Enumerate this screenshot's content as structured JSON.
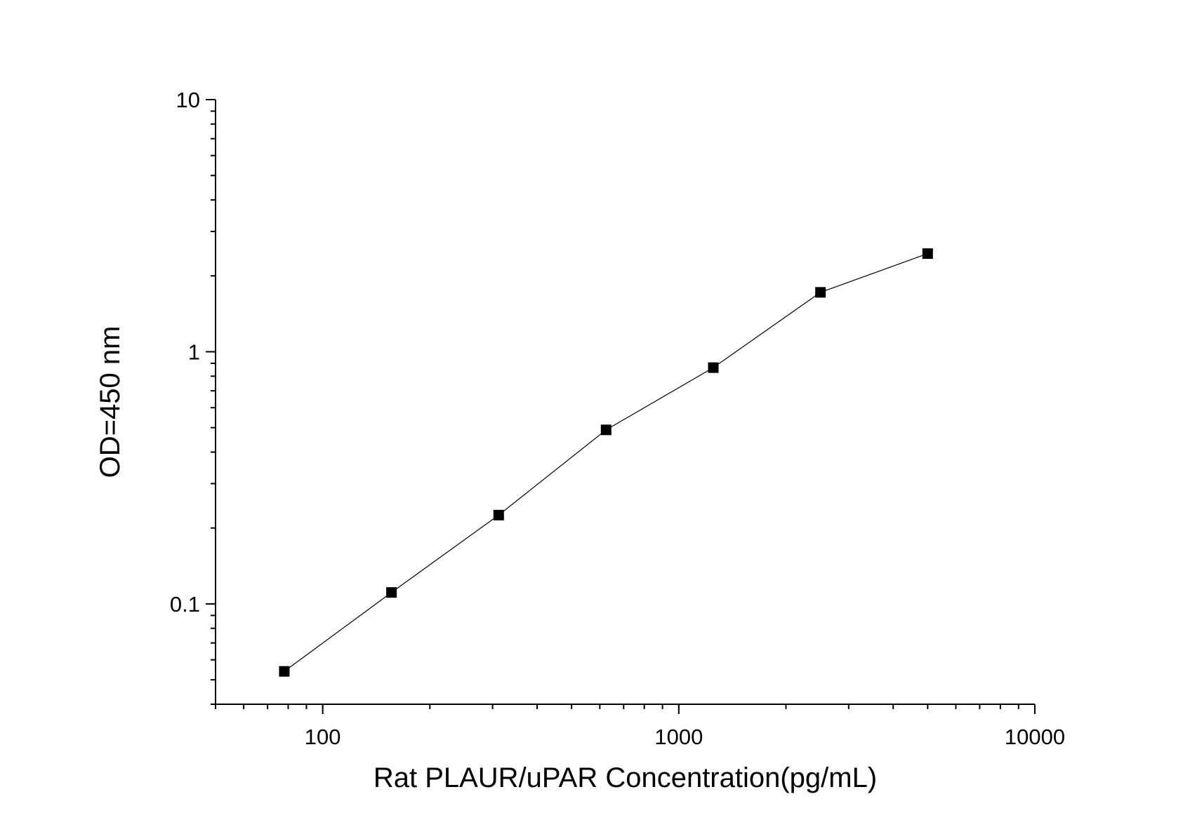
{
  "chart_data": {
    "type": "scatter",
    "title": "",
    "xlabel": "Rat PLAUR/uPAR Concentration(pg/mL)",
    "ylabel": "OD=450 nm",
    "xscale": "log",
    "yscale": "log",
    "xlim": [
      50,
      10000
    ],
    "ylim": [
      0.04,
      10
    ],
    "x_ticks": [
      {
        "value": 100,
        "label": "100"
      },
      {
        "value": 1000,
        "label": "1000"
      },
      {
        "value": 10000,
        "label": "10000"
      }
    ],
    "y_ticks": [
      {
        "value": 10,
        "label": "10"
      },
      {
        "value": 1,
        "label": "1"
      },
      {
        "value": 0.1,
        "label": "0.1"
      }
    ],
    "grid": false,
    "legend": "none",
    "marker": "square",
    "connected_by_line": true,
    "color": "#000000",
    "series": [
      {
        "x": [
          78,
          156,
          312,
          625,
          1250,
          2500,
          5000
        ],
        "y": [
          0.054,
          0.111,
          0.225,
          0.49,
          0.865,
          1.72,
          2.45
        ]
      }
    ]
  }
}
